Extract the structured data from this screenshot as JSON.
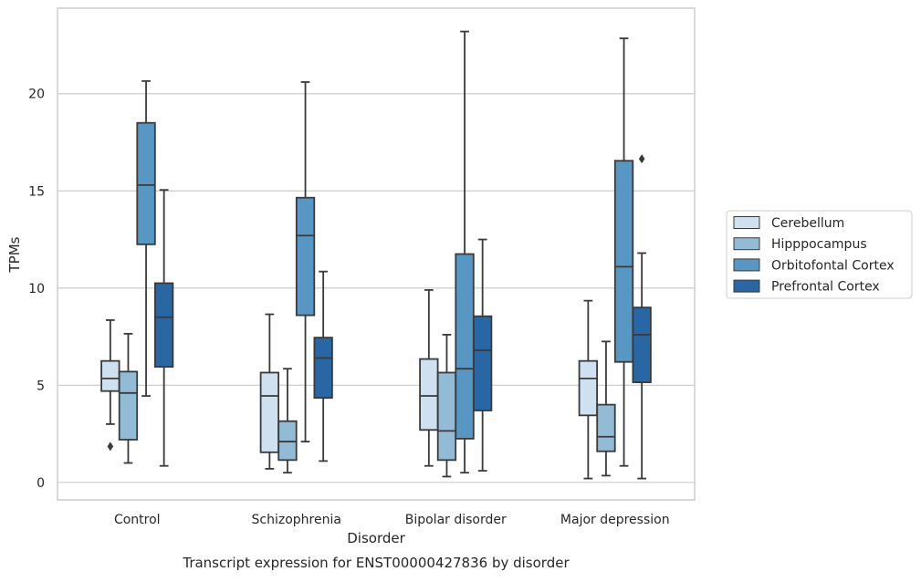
{
  "chart_data": {
    "type": "boxplot",
    "title": "Transcript expression for ENST00000427836 by disorder",
    "xlabel": "Disorder",
    "ylabel": "TPMs",
    "ylim": [
      -0.9,
      24.4
    ],
    "yticks": [
      0,
      5,
      10,
      15,
      20
    ],
    "grid": "horizontal",
    "legend_position": "right",
    "categories": [
      "Control",
      "Schizophrenia",
      "Bipolar disorder",
      "Major depression"
    ],
    "series": [
      {
        "name": "Cerebellum",
        "color": "#cfe1f0",
        "boxes": [
          {
            "whislo": 3.0,
            "q1": 4.7,
            "med": 5.35,
            "q3": 6.25,
            "whishi": 8.35,
            "fliers": [
              1.85
            ]
          },
          {
            "whislo": 0.7,
            "q1": 1.55,
            "med": 4.45,
            "q3": 5.65,
            "whishi": 8.65,
            "fliers": []
          },
          {
            "whislo": 0.85,
            "q1": 2.7,
            "med": 4.45,
            "q3": 6.35,
            "whishi": 9.9,
            "fliers": []
          },
          {
            "whislo": 0.2,
            "q1": 3.45,
            "med": 5.35,
            "q3": 6.25,
            "whishi": 9.35,
            "fliers": []
          }
        ]
      },
      {
        "name": "Hipppocampus",
        "color": "#92bcd6",
        "boxes": [
          {
            "whislo": 1.0,
            "q1": 2.2,
            "med": 4.6,
            "q3": 5.7,
            "whishi": 7.65,
            "fliers": []
          },
          {
            "whislo": 0.5,
            "q1": 1.15,
            "med": 2.1,
            "q3": 3.15,
            "whishi": 5.85,
            "fliers": []
          },
          {
            "whislo": 0.3,
            "q1": 1.15,
            "med": 2.65,
            "q3": 5.65,
            "whishi": 7.6,
            "fliers": []
          },
          {
            "whislo": 0.35,
            "q1": 1.6,
            "med": 2.35,
            "q3": 4.0,
            "whishi": 7.25,
            "fliers": []
          }
        ]
      },
      {
        "name": "Orbitofontal Cortex",
        "color": "#5897c4",
        "boxes": [
          {
            "whislo": 4.45,
            "q1": 12.25,
            "med": 15.3,
            "q3": 18.5,
            "whishi": 20.65,
            "fliers": []
          },
          {
            "whislo": 2.1,
            "q1": 8.6,
            "med": 12.7,
            "q3": 14.65,
            "whishi": 20.6,
            "fliers": []
          },
          {
            "whislo": 0.5,
            "q1": 2.25,
            "med": 5.85,
            "q3": 11.75,
            "whishi": 23.2,
            "fliers": []
          },
          {
            "whislo": 0.85,
            "q1": 6.2,
            "med": 11.1,
            "q3": 16.55,
            "whishi": 22.85,
            "fliers": []
          }
        ]
      },
      {
        "name": "Prefrontal Cortex",
        "color": "#2866a4",
        "boxes": [
          {
            "whislo": 0.85,
            "q1": 5.95,
            "med": 8.5,
            "q3": 10.25,
            "whishi": 15.05,
            "fliers": []
          },
          {
            "whislo": 1.1,
            "q1": 4.35,
            "med": 6.4,
            "q3": 7.45,
            "whishi": 10.85,
            "fliers": []
          },
          {
            "whislo": 0.6,
            "q1": 3.7,
            "med": 6.8,
            "q3": 8.55,
            "whishi": 12.5,
            "fliers": []
          },
          {
            "whislo": 0.2,
            "q1": 5.15,
            "med": 7.6,
            "q3": 9.0,
            "whishi": 11.8,
            "fliers": [
              16.65
            ]
          }
        ]
      }
    ]
  }
}
